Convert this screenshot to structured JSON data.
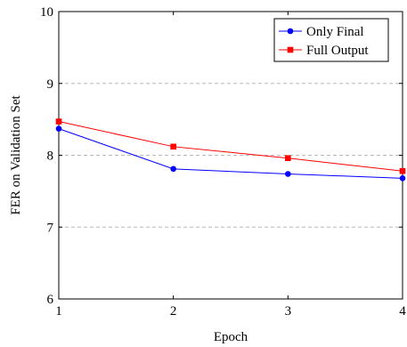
{
  "chart_data": {
    "type": "line",
    "xlabel": "Epoch",
    "ylabel": "FER on Validation Set",
    "x": [
      1,
      2,
      3,
      4
    ],
    "xlim": [
      1,
      4
    ],
    "ylim": [
      6,
      10
    ],
    "xticks": [
      "1",
      "2",
      "3",
      "4"
    ],
    "yticks": [
      "6",
      "7",
      "8",
      "9",
      "10"
    ],
    "grid": "horizontal dashed",
    "legend_position": "top-right",
    "series": [
      {
        "name": "Only Final",
        "values": [
          8.37,
          7.81,
          7.74,
          7.68
        ],
        "color": "#0000ff",
        "marker": "circle"
      },
      {
        "name": "Full Output",
        "values": [
          8.47,
          8.12,
          7.96,
          7.78
        ],
        "color": "#ff0000",
        "marker": "square"
      }
    ]
  }
}
